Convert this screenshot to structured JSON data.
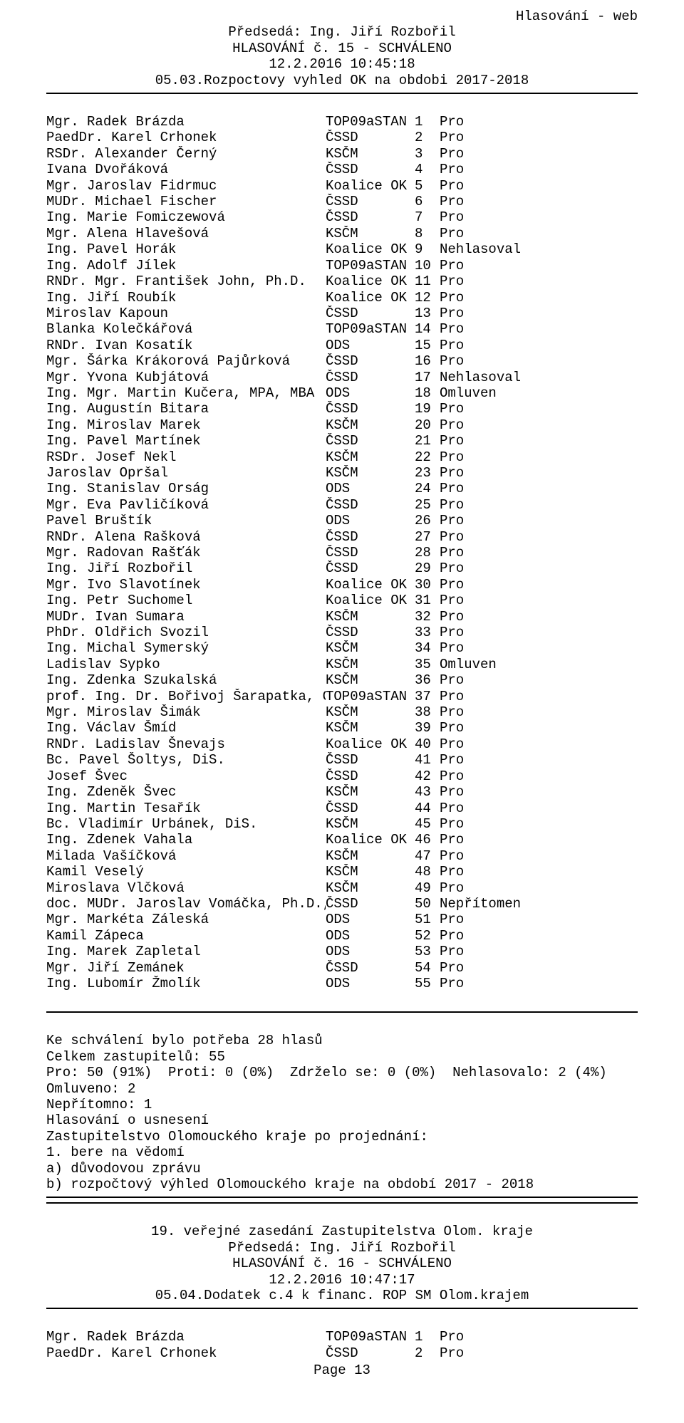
{
  "doc_title": "Hlasování - web",
  "header": {
    "chairman": "Předsedá: Ing. Jiří Rozbořil",
    "vote_title": "HLASOVÁNÍ č. 15 - SCHVÁLENO",
    "datetime": "12.2.2016 10:45:18",
    "subject": "05.03.Rozpoctovy vyhled OK na obdobi 2017-2018"
  },
  "rows": [
    {
      "name": "Mgr. Radek Brázda",
      "party": "TOP09aSTAN",
      "num": "1",
      "vote": "Pro"
    },
    {
      "name": "PaedDr. Karel Crhonek",
      "party": "ČSSD",
      "num": "2",
      "vote": "Pro"
    },
    {
      "name": "RSDr. Alexander Černý",
      "party": "KSČM",
      "num": "3",
      "vote": "Pro"
    },
    {
      "name": "Ivana Dvořáková",
      "party": "ČSSD",
      "num": "4",
      "vote": "Pro"
    },
    {
      "name": "Mgr. Jaroslav Fidrmuc",
      "party": "Koalice OK",
      "num": "5",
      "vote": "Pro"
    },
    {
      "name": "MUDr. Michael Fischer",
      "party": "ČSSD",
      "num": "6",
      "vote": "Pro"
    },
    {
      "name": "Ing. Marie Fomiczewová",
      "party": "ČSSD",
      "num": "7",
      "vote": "Pro"
    },
    {
      "name": "Mgr. Alena Hlavešová",
      "party": "KSČM",
      "num": "8",
      "vote": "Pro"
    },
    {
      "name": "Ing. Pavel Horák",
      "party": "Koalice OK",
      "num": "9",
      "vote": "Nehlasoval"
    },
    {
      "name": "Ing. Adolf Jílek",
      "party": "TOP09aSTAN",
      "num": "10",
      "vote": "Pro"
    },
    {
      "name": "RNDr. Mgr. František John, Ph.D.",
      "party": "Koalice OK",
      "num": "11",
      "vote": "Pro"
    },
    {
      "name": "Ing. Jiří Roubík",
      "party": "Koalice OK",
      "num": "12",
      "vote": "Pro"
    },
    {
      "name": "Miroslav Kapoun",
      "party": "ČSSD",
      "num": "13",
      "vote": "Pro"
    },
    {
      "name": "Blanka Kolečkářová",
      "party": "TOP09aSTAN",
      "num": "14",
      "vote": "Pro"
    },
    {
      "name": "RNDr. Ivan Kosatík",
      "party": "ODS",
      "num": "15",
      "vote": "Pro"
    },
    {
      "name": "Mgr. Šárka Krákorová Pajůrková",
      "party": "ČSSD",
      "num": "16",
      "vote": "Pro"
    },
    {
      "name": "Mgr. Yvona Kubjátová",
      "party": "ČSSD",
      "num": "17",
      "vote": "Nehlasoval"
    },
    {
      "name": "Ing. Mgr. Martin Kučera, MPA, MBA",
      "party": "ODS",
      "num": "18",
      "vote": "Omluven"
    },
    {
      "name": "Ing. Augustín Bitara",
      "party": "ČSSD",
      "num": "19",
      "vote": "Pro"
    },
    {
      "name": "Ing. Miroslav Marek",
      "party": "KSČM",
      "num": "20",
      "vote": "Pro"
    },
    {
      "name": "Ing. Pavel Martínek",
      "party": "ČSSD",
      "num": "21",
      "vote": "Pro"
    },
    {
      "name": "RSDr. Josef Nekl",
      "party": "KSČM",
      "num": "22",
      "vote": "Pro"
    },
    {
      "name": "Jaroslav Opršal",
      "party": "KSČM",
      "num": "23",
      "vote": "Pro"
    },
    {
      "name": "Ing. Stanislav Orság",
      "party": "ODS",
      "num": "24",
      "vote": "Pro"
    },
    {
      "name": "Mgr. Eva Pavličíková",
      "party": "ČSSD",
      "num": "25",
      "vote": "Pro"
    },
    {
      "name": "Pavel Bruštík",
      "party": "ODS",
      "num": "26",
      "vote": "Pro"
    },
    {
      "name": "RNDr. Alena Rašková",
      "party": "ČSSD",
      "num": "27",
      "vote": "Pro"
    },
    {
      "name": "Mgr. Radovan Rašťák",
      "party": "ČSSD",
      "num": "28",
      "vote": "Pro"
    },
    {
      "name": "Ing. Jiří Rozbořil",
      "party": "ČSSD",
      "num": "29",
      "vote": "Pro"
    },
    {
      "name": "Mgr. Ivo Slavotínek",
      "party": "Koalice OK",
      "num": "30",
      "vote": "Pro"
    },
    {
      "name": "Ing. Petr Suchomel",
      "party": "Koalice OK",
      "num": "31",
      "vote": "Pro"
    },
    {
      "name": "MUDr. Ivan Sumara",
      "party": "KSČM",
      "num": "32",
      "vote": "Pro"
    },
    {
      "name": "PhDr. Oldřich Svozil",
      "party": "ČSSD",
      "num": "33",
      "vote": "Pro"
    },
    {
      "name": "Ing. Michal Symerský",
      "party": "KSČM",
      "num": "34",
      "vote": "Pro"
    },
    {
      "name": "Ladislav Sypko",
      "party": "KSČM",
      "num": "35",
      "vote": "Omluven"
    },
    {
      "name": "Ing. Zdenka Szukalská",
      "party": "KSČM",
      "num": "36",
      "vote": "Pro"
    },
    {
      "name": "prof. Ing. Dr. Bořivoj Šarapatka, CSc.",
      "party": "TOP09aSTAN",
      "num": "37",
      "vote": "Pro"
    },
    {
      "name": "Mgr. Miroslav Šimák",
      "party": "KSČM",
      "num": "38",
      "vote": "Pro"
    },
    {
      "name": "Ing. Václav Šmíd",
      "party": "KSČM",
      "num": "39",
      "vote": "Pro"
    },
    {
      "name": "RNDr. Ladislav Šnevajs",
      "party": "Koalice OK",
      "num": "40",
      "vote": "Pro"
    },
    {
      "name": "Bc. Pavel Šoltys, DiS.",
      "party": "ČSSD",
      "num": "41",
      "vote": "Pro"
    },
    {
      "name": "Josef Švec",
      "party": "ČSSD",
      "num": "42",
      "vote": "Pro"
    },
    {
      "name": "Ing. Zdeněk Švec",
      "party": "KSČM",
      "num": "43",
      "vote": "Pro"
    },
    {
      "name": "Ing. Martin Tesařík",
      "party": "ČSSD",
      "num": "44",
      "vote": "Pro"
    },
    {
      "name": "Bc. Vladimír Urbánek, DiS.",
      "party": "KSČM",
      "num": "45",
      "vote": "Pro"
    },
    {
      "name": "Ing. Zdenek Vahala",
      "party": "Koalice OK",
      "num": "46",
      "vote": "Pro"
    },
    {
      "name": "Milada Vašíčková",
      "party": "KSČM",
      "num": "47",
      "vote": "Pro"
    },
    {
      "name": "Kamil Veselý",
      "party": "KSČM",
      "num": "48",
      "vote": "Pro"
    },
    {
      "name": "Miroslava Vlčková",
      "party": "KSČM",
      "num": "49",
      "vote": "Pro"
    },
    {
      "name": "doc. MUDr. Jaroslav Vomáčka, Ph.D., MBA",
      "party": "ČSSD",
      "num": "50",
      "vote": "Nepřítomen"
    },
    {
      "name": "Mgr. Markéta Záleská",
      "party": "ODS",
      "num": "51",
      "vote": "Pro"
    },
    {
      "name": "Kamil Zápeca",
      "party": "ODS",
      "num": "52",
      "vote": "Pro"
    },
    {
      "name": "Ing. Marek Zapletal",
      "party": "ODS",
      "num": "53",
      "vote": "Pro"
    },
    {
      "name": "Mgr. Jiří Zemánek",
      "party": "ČSSD",
      "num": "54",
      "vote": "Pro"
    },
    {
      "name": "Ing. Lubomír Žmolík",
      "party": "ODS",
      "num": "55",
      "vote": "Pro"
    }
  ],
  "summary": {
    "needed": "Ke schválení bylo potřeba 28 hlasů",
    "total": "Celkem zastupitelů: 55",
    "counts": "Pro: 50 (91%)  Proti: 0 (0%)  Zdrželo se: 0 (0%)  Nehlasovalo: 2 (4%)",
    "excused": "Omluveno: 2",
    "absent": "Nepřítomno: 1",
    "about": "Hlasování o usnesení",
    "body": "Zastupitelstvo Olomouckého kraje po projednání:",
    "point1": "1. bere na vědomí",
    "point1a": "a) důvodovou zprávu",
    "point1b": "b) rozpočtový výhled Olomouckého kraje na období 2017 - 2018"
  },
  "next": {
    "meeting": "19. veřejné zasedání Zastupitelstva Olom. kraje",
    "chairman": "Předsedá: Ing. Jiří Rozbořil",
    "vote_title": "HLASOVÁNÍ č. 16 - SCHVÁLENO",
    "datetime": "12.2.2016 10:47:17",
    "subject": "05.04.Dodatek c.4 k financ. ROP SM Olom.krajem"
  },
  "next_rows": [
    {
      "name": "Mgr. Radek Brázda",
      "party": "TOP09aSTAN",
      "num": "1",
      "vote": "Pro"
    },
    {
      "name": "PaedDr. Karel Crhonek",
      "party": "ČSSD",
      "num": "2",
      "vote": "Pro"
    }
  ],
  "page_label": "Page 13"
}
